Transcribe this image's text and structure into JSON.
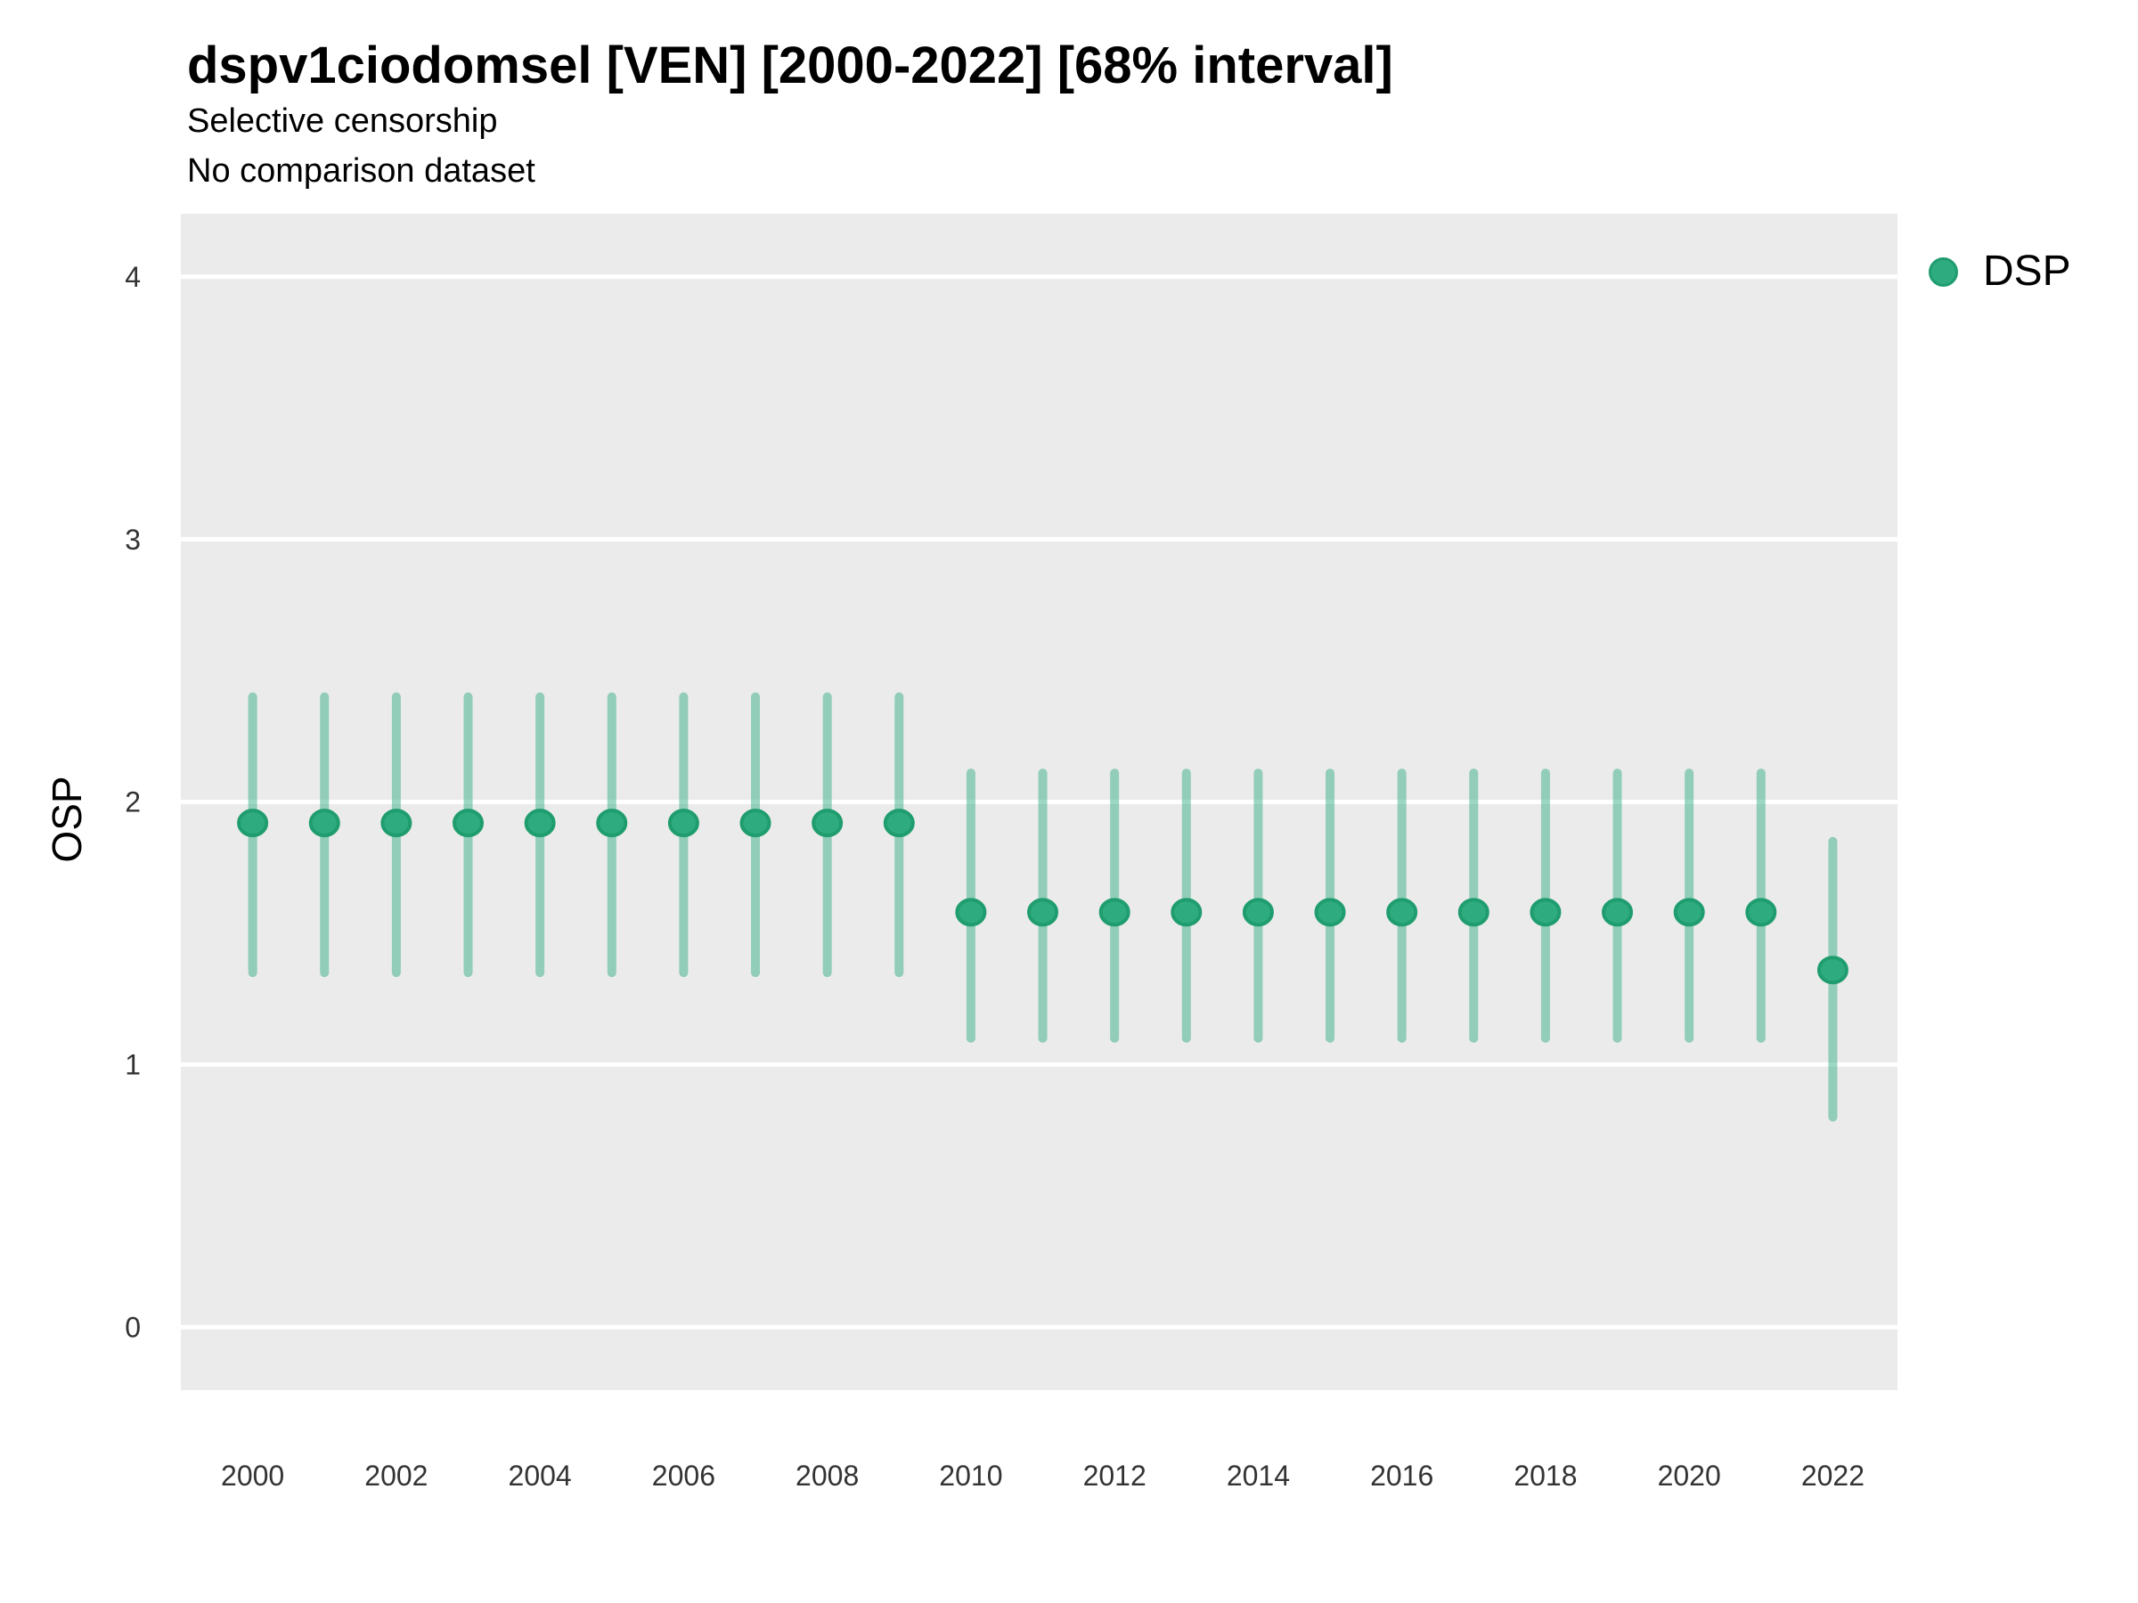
{
  "header": {
    "title": "dspv1ciodomsel [VEN] [2000-2022] [68% interval]",
    "subtitle1": "Selective censorship",
    "subtitle2": "No comparison dataset"
  },
  "legend": {
    "label": "DSP"
  },
  "axes": {
    "y_title": "OSP"
  },
  "colors": {
    "point_fill": "#2fac7f",
    "point_stroke": "#1f9d6f",
    "interval": "rgba(47, 172, 127, 0.48)",
    "panel_bg": "#ebebeb",
    "gridline": "#ffffff",
    "tick_text": "#333333"
  },
  "chart_data": {
    "type": "scatter",
    "title": "dspv1ciodomsel [VEN] [2000-2022] [68% interval]",
    "subtitle": [
      "Selective censorship",
      "No comparison dataset"
    ],
    "xlabel": "",
    "ylabel": "OSP",
    "legend_position": "right",
    "grid": "horizontal-major-only",
    "x_ticks": [
      2000,
      2002,
      2004,
      2006,
      2008,
      2010,
      2012,
      2014,
      2016,
      2018,
      2020,
      2022
    ],
    "y_ticks": [
      0,
      1,
      2,
      3,
      4
    ],
    "xlim": [
      1999.0,
      2022.9
    ],
    "ylim": [
      -0.24,
      4.24
    ],
    "series": [
      {
        "name": "DSP",
        "points": [
          {
            "year": 2000,
            "mid": 1.92,
            "lo": 1.35,
            "hi": 2.4
          },
          {
            "year": 2001,
            "mid": 1.92,
            "lo": 1.35,
            "hi": 2.4
          },
          {
            "year": 2002,
            "mid": 1.92,
            "lo": 1.35,
            "hi": 2.4
          },
          {
            "year": 2003,
            "mid": 1.92,
            "lo": 1.35,
            "hi": 2.4
          },
          {
            "year": 2004,
            "mid": 1.92,
            "lo": 1.35,
            "hi": 2.4
          },
          {
            "year": 2005,
            "mid": 1.92,
            "lo": 1.35,
            "hi": 2.4
          },
          {
            "year": 2006,
            "mid": 1.92,
            "lo": 1.35,
            "hi": 2.4
          },
          {
            "year": 2007,
            "mid": 1.92,
            "lo": 1.35,
            "hi": 2.4
          },
          {
            "year": 2008,
            "mid": 1.92,
            "lo": 1.35,
            "hi": 2.4
          },
          {
            "year": 2009,
            "mid": 1.92,
            "lo": 1.35,
            "hi": 2.4
          },
          {
            "year": 2010,
            "mid": 1.58,
            "lo": 1.1,
            "hi": 2.11
          },
          {
            "year": 2011,
            "mid": 1.58,
            "lo": 1.1,
            "hi": 2.11
          },
          {
            "year": 2012,
            "mid": 1.58,
            "lo": 1.1,
            "hi": 2.11
          },
          {
            "year": 2013,
            "mid": 1.58,
            "lo": 1.1,
            "hi": 2.11
          },
          {
            "year": 2014,
            "mid": 1.58,
            "lo": 1.1,
            "hi": 2.11
          },
          {
            "year": 2015,
            "mid": 1.58,
            "lo": 1.1,
            "hi": 2.11
          },
          {
            "year": 2016,
            "mid": 1.58,
            "lo": 1.1,
            "hi": 2.11
          },
          {
            "year": 2017,
            "mid": 1.58,
            "lo": 1.1,
            "hi": 2.11
          },
          {
            "year": 2018,
            "mid": 1.58,
            "lo": 1.1,
            "hi": 2.11
          },
          {
            "year": 2019,
            "mid": 1.58,
            "lo": 1.1,
            "hi": 2.11
          },
          {
            "year": 2020,
            "mid": 1.58,
            "lo": 1.1,
            "hi": 2.11
          },
          {
            "year": 2021,
            "mid": 1.58,
            "lo": 1.1,
            "hi": 2.11
          },
          {
            "year": 2022,
            "mid": 1.36,
            "lo": 0.8,
            "hi": 1.85
          }
        ]
      }
    ]
  }
}
